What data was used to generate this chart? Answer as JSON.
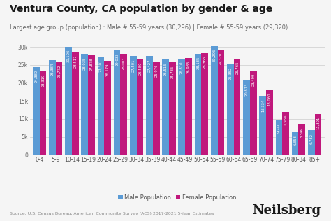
{
  "title": "Ventura County, CA population by gender & age",
  "subtitle": "Largest age group (population) : Male # 55-59 years (30,296) | Female # 55-59 years (29,320)",
  "source": "Source: U.S. Census Bureau, American Community Survey (ACS) 2017-2021 5-Year Estimates",
  "categories": [
    "0-4",
    "5-9",
    "10-14",
    "15-19",
    "20-24",
    "25-29",
    "30-34",
    "35-39",
    "40-44",
    "45-49",
    "50-54",
    "55-59",
    "60-64",
    "65-69",
    "70-74",
    "75-79",
    "80-84",
    "85+"
  ],
  "male": [
    24382,
    26384,
    30106,
    28035,
    27301,
    29033,
    27501,
    27427,
    26515,
    26810,
    28135,
    30296,
    25352,
    20813,
    16334,
    9740,
    6353,
    6782
  ],
  "female": [
    23319,
    25772,
    28517,
    27878,
    26179,
    28003,
    26580,
    25976,
    25735,
    26985,
    28365,
    29320,
    26765,
    23499,
    18060,
    11956,
    8349,
    11391
  ],
  "male_color": "#5b9bd5",
  "female_color": "#c0187c",
  "background_color": "#f5f5f5",
  "bar_labels_color": "#ffffff",
  "ylim": [
    0,
    32000
  ],
  "yticks": [
    0,
    5000,
    10000,
    15000,
    20000,
    25000,
    30000
  ],
  "legend_male": "Male Population",
  "legend_female": "Female Population",
  "title_fontsize": 10,
  "subtitle_fontsize": 6.0,
  "axis_label_fontsize": 5.5,
  "bar_label_fontsize": 3.8,
  "neilsberg_fontsize": 13
}
